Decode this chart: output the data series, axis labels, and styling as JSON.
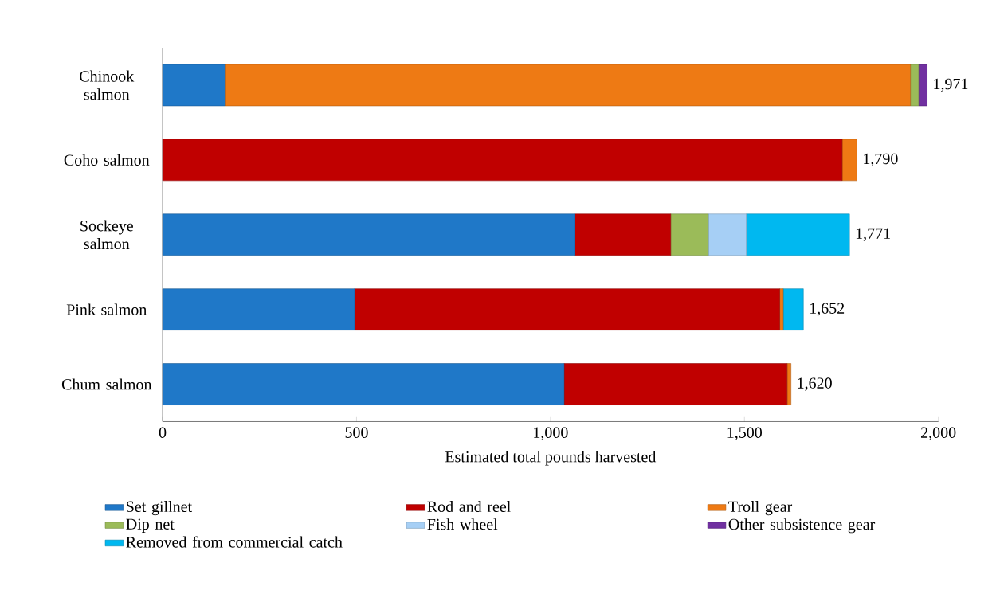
{
  "chart_data": {
    "type": "bar",
    "orientation": "horizontal",
    "stacked": true,
    "categories": [
      "Chinook salmon",
      "Coho salmon",
      "Sockeye salmon",
      "Pink salmon",
      "Chum salmon"
    ],
    "xlabel": "Estimated total pounds harvested",
    "xlim": [
      0,
      2000
    ],
    "xticks": [
      0,
      500,
      {
        "value": 1000,
        "label": "1,000"
      },
      {
        "value": 1500,
        "label": "1,500"
      },
      {
        "value": 2000,
        "label": "2,000"
      }
    ],
    "series": [
      {
        "name": "Set gillnet",
        "color": "#1f78c8",
        "values": [
          162,
          0,
          1062,
          495,
          1035
        ]
      },
      {
        "name": "Rod and reel",
        "color": "#c00000",
        "values": [
          0,
          1752,
          248,
          1096,
          575
        ]
      },
      {
        "name": "Troll gear",
        "color": "#ee7a14",
        "values": [
          1766,
          38,
          0,
          9,
          10
        ]
      },
      {
        "name": "Dip net",
        "color": "#9bbb59",
        "values": [
          21,
          0,
          97,
          0,
          0
        ]
      },
      {
        "name": "Fish wheel",
        "color": "#a6cff5",
        "values": [
          0,
          0,
          98,
          0,
          0
        ]
      },
      {
        "name": "Other subsistence gear",
        "color": "#7030a0",
        "values": [
          22,
          0,
          0,
          0,
          0
        ]
      },
      {
        "name": "Removed from commercial catch",
        "color": "#00b8f0",
        "values": [
          0,
          0,
          266,
          52,
          0
        ]
      }
    ],
    "totals": [
      "1,971",
      "1,790",
      "1,771",
      "1,652",
      "1,620"
    ],
    "grid": false,
    "legend": "bottom"
  }
}
